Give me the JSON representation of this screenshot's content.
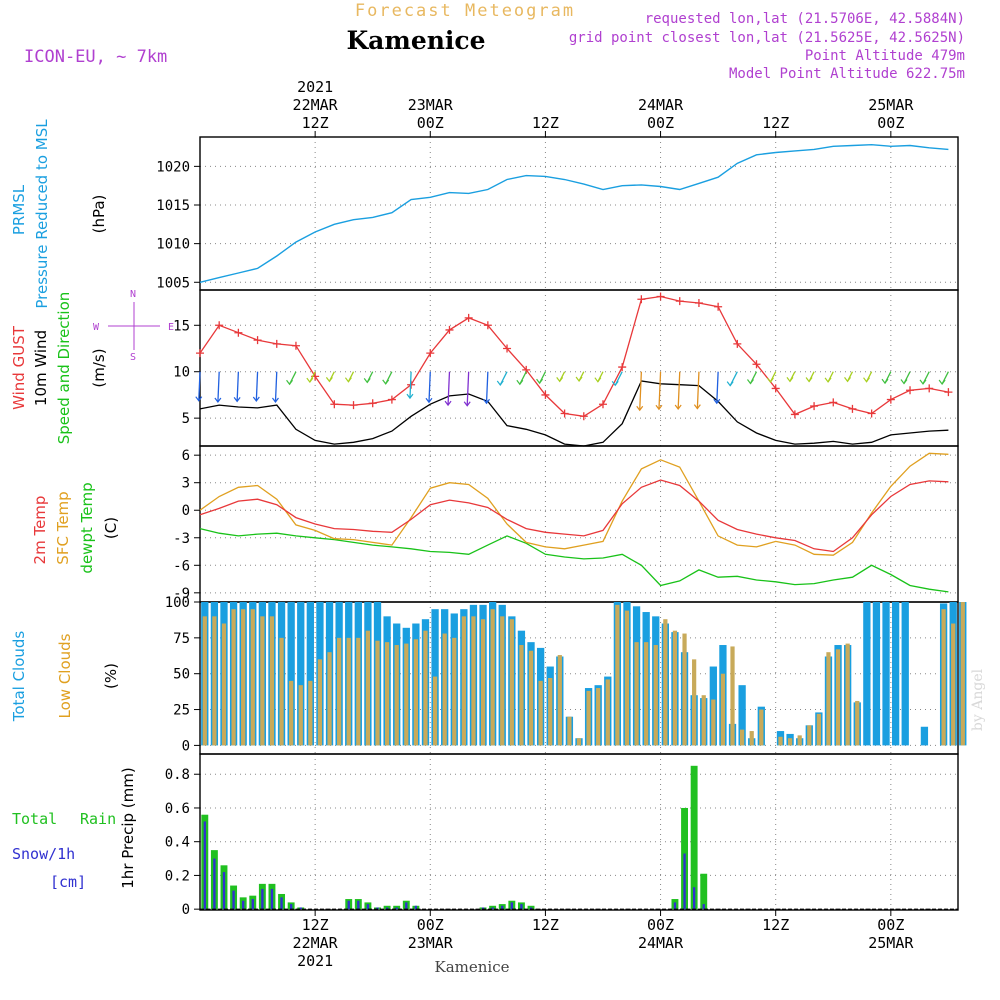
{
  "header": {
    "supertitle": "Forecast Meteogram",
    "location": "Kamenice",
    "model": "ICON-EU, ~ 7km",
    "requested": "requested lon,lat (21.5706E, 42.5884N)",
    "gridpoint": "grid point closest lon,lat (21.5625E, 42.5625N)",
    "point_altitude": "Point Altitude 479m",
    "model_altitude": "Model Point Altitude 622.75m",
    "footer": "Kamenice",
    "watermark": "by Angel"
  },
  "time_axis": {
    "top": [
      {
        "hour": 12,
        "lines": [
          "2021",
          "22MAR",
          "12Z"
        ]
      },
      {
        "hour": 24,
        "lines": [
          "23MAR",
          "00Z"
        ]
      },
      {
        "hour": 36,
        "lines": [
          "12Z"
        ]
      },
      {
        "hour": 48,
        "lines": [
          "24MAR",
          "00Z"
        ]
      },
      {
        "hour": 60,
        "lines": [
          "12Z"
        ]
      },
      {
        "hour": 72,
        "lines": [
          "25MAR",
          "00Z"
        ]
      }
    ],
    "bottom": [
      {
        "hour": 12,
        "lines": [
          "12Z",
          "22MAR",
          "2021"
        ]
      },
      {
        "hour": 24,
        "lines": [
          "00Z",
          "23MAR"
        ]
      },
      {
        "hour": 36,
        "lines": [
          "12Z"
        ]
      },
      {
        "hour": 48,
        "lines": [
          "00Z",
          "24MAR"
        ]
      },
      {
        "hour": 60,
        "lines": [
          "12Z"
        ]
      },
      {
        "hour": 72,
        "lines": [
          "00Z",
          "25MAR"
        ]
      }
    ]
  },
  "labels": {
    "p1": {
      "a": "PRMSL",
      "b": "Pressure Reduced to MSL",
      "unit": "(hPa)"
    },
    "p2": {
      "a": "Wind GUST",
      "b": "10m Wind",
      "c": "Speed and Direction",
      "unit": "(m/s)",
      "compass_w": "W",
      "compass_e": "E",
      "compass_n": "N",
      "compass_s": "S"
    },
    "p3": {
      "a": "2m Temp",
      "b": "SFC Temp",
      "c": "dewpt Temp",
      "unit": "(C)"
    },
    "p4": {
      "a": "Total Clouds",
      "b": "Low Clouds",
      "unit": "(%)"
    },
    "p5": {
      "a": "Total",
      "a2": "Rain",
      "b": "Snow/1h",
      "b2": "[cm]",
      "unit": "1hr Precip (mm)"
    }
  },
  "colors": {
    "pressure": "#1a9fe0",
    "gust": "#e8383a",
    "wind": "#000000",
    "t2m": "#e8383a",
    "tsfc": "#e0a020",
    "dewpt": "#19c219",
    "total_clouds": "#1a9fe0",
    "low_clouds": "#c8aa5a",
    "rain": "#20c020",
    "snow": "#3030d0",
    "title": "#e8b860",
    "info": "#b040d0"
  },
  "chart_data": [
    {
      "type": "line",
      "title": "PRMSL Pressure Reduced to MSL",
      "ylabel": "(hPa)",
      "ylim": [
        1004,
        1023.8
      ],
      "yticks": [
        1005,
        1010,
        1015,
        1020
      ],
      "x": [
        0,
        2,
        4,
        6,
        8,
        10,
        12,
        14,
        16,
        18,
        20,
        22,
        24,
        26,
        28,
        30,
        32,
        34,
        36,
        38,
        40,
        42,
        44,
        46,
        48,
        50,
        52,
        54,
        56,
        58,
        60,
        62,
        64,
        66,
        68,
        70,
        72,
        74,
        76,
        78
      ],
      "series": [
        {
          "name": "PRMSL",
          "values": [
            1005,
            1005.6,
            1006.2,
            1006.8,
            1008.4,
            1010.2,
            1011.5,
            1012.5,
            1013.1,
            1013.4,
            1014,
            1015.7,
            1016,
            1016.6,
            1016.5,
            1017,
            1018.3,
            1018.8,
            1018.7,
            1018.3,
            1017.7,
            1017,
            1017.5,
            1017.6,
            1017.4,
            1017,
            1017.8,
            1018.6,
            1020.4,
            1021.5,
            1021.8,
            1022,
            1022.2,
            1022.6,
            1022.7,
            1022.8,
            1022.6,
            1022.7,
            1022.4,
            1022.2
          ]
        }
      ]
    },
    {
      "type": "line",
      "title": "Wind GUST, 10m Wind Speed and Direction",
      "ylabel": "(m/s)",
      "ylim": [
        2,
        18.8
      ],
      "yticks": [
        5,
        10,
        15
      ],
      "x": [
        0,
        2,
        4,
        6,
        8,
        10,
        12,
        14,
        16,
        18,
        20,
        22,
        24,
        26,
        28,
        30,
        32,
        34,
        36,
        38,
        40,
        42,
        44,
        46,
        48,
        50,
        52,
        54,
        56,
        58,
        60,
        62,
        64,
        66,
        68,
        70,
        72,
        74,
        76,
        78
      ],
      "series": [
        {
          "name": "Wind GUST",
          "values": [
            12,
            15,
            14.2,
            13.4,
            13,
            12.8,
            9.5,
            6.5,
            6.4,
            6.6,
            7,
            8.6,
            12,
            14.5,
            15.8,
            15,
            12.5,
            10.2,
            7.5,
            5.5,
            5.2,
            6.5,
            10.5,
            17.8,
            18.1,
            17.6,
            17.4,
            17,
            13,
            10.8,
            8.2,
            5.4,
            6.3,
            6.7,
            6,
            5.5,
            7,
            8,
            8.2,
            7.8
          ]
        },
        {
          "name": "10m Wind",
          "values": [
            6,
            6.4,
            6.2,
            6.1,
            6.4,
            3.8,
            2.6,
            2.2,
            2.4,
            2.8,
            3.6,
            5.2,
            6.5,
            7.4,
            7.6,
            6.8,
            4.2,
            3.8,
            3.2,
            2.2,
            2,
            2.4,
            4.4,
            9,
            8.7,
            8.6,
            8.5,
            6.8,
            4.6,
            3.4,
            2.6,
            2.2,
            2.3,
            2.5,
            2.2,
            2.4,
            3.2,
            3.4,
            3.6,
            3.7
          ]
        }
      ]
    },
    {
      "type": "line",
      "title": "2m Temp, SFC Temp, dewpt Temp",
      "ylabel": "(C)",
      "ylim": [
        -10,
        7
      ],
      "yticks": [
        -9,
        -6,
        -3,
        0,
        3,
        6
      ],
      "x": [
        0,
        2,
        4,
        6,
        8,
        10,
        12,
        14,
        16,
        18,
        20,
        22,
        24,
        26,
        28,
        30,
        32,
        34,
        36,
        38,
        40,
        42,
        44,
        46,
        48,
        50,
        52,
        54,
        56,
        58,
        60,
        62,
        64,
        66,
        68,
        70,
        72,
        74,
        76,
        78
      ],
      "series": [
        {
          "name": "2m Temp",
          "values": [
            -0.5,
            0.2,
            1,
            1.2,
            0.6,
            -0.8,
            -1.5,
            -2,
            -2.1,
            -2.3,
            -2.4,
            -1,
            0.6,
            1.1,
            0.8,
            0.3,
            -1,
            -2,
            -2.4,
            -2.6,
            -2.8,
            -2.2,
            0.7,
            2.5,
            3.3,
            2.7,
            1,
            -1.1,
            -2.1,
            -2.6,
            -3,
            -3.3,
            -4.2,
            -4.5,
            -3,
            -0.5,
            1.5,
            2.8,
            3.2,
            3.1
          ]
        },
        {
          "name": "SFC Temp",
          "values": [
            0,
            1.5,
            2.5,
            2.7,
            1.2,
            -1.6,
            -2.2,
            -3.1,
            -3.2,
            -3.5,
            -3.8,
            -0.8,
            2.4,
            3,
            2.8,
            1.3,
            -1.5,
            -3.5,
            -4,
            -4.2,
            -3.8,
            -3.4,
            1,
            4.5,
            5.5,
            4.7,
            1,
            -2.8,
            -3.8,
            -4,
            -3.4,
            -3.8,
            -4.8,
            -4.9,
            -3.5,
            -0.3,
            2.6,
            4.8,
            6.2,
            6.1
          ]
        },
        {
          "name": "dewpt Temp",
          "values": [
            -2,
            -2.5,
            -2.8,
            -2.6,
            -2.5,
            -2.8,
            -3,
            -3.2,
            -3.5,
            -3.8,
            -4,
            -4.2,
            -4.5,
            -4.6,
            -4.8,
            -3.8,
            -2.8,
            -3.6,
            -4.8,
            -5.1,
            -5.3,
            -5.2,
            -4.8,
            -6,
            -8.2,
            -7.7,
            -6.5,
            -7.3,
            -7.2,
            -7.6,
            -7.8,
            -8.1,
            -8,
            -7.6,
            -7.3,
            -6,
            -7,
            -8.2,
            -8.6,
            -8.9
          ]
        }
      ]
    },
    {
      "type": "bar",
      "title": "Total Clouds, Low Clouds",
      "ylabel": "(%)",
      "ylim": [
        -6,
        100
      ],
      "yticks": [
        0,
        25,
        50,
        75,
        100
      ],
      "x": [
        1,
        2,
        3,
        4,
        5,
        6,
        7,
        8,
        9,
        10,
        11,
        12,
        13,
        14,
        15,
        16,
        17,
        18,
        19,
        20,
        21,
        22,
        23,
        24,
        25,
        26,
        27,
        28,
        29,
        30,
        31,
        32,
        33,
        34,
        35,
        36,
        37,
        38,
        39,
        40,
        41,
        42,
        43,
        44,
        45,
        46,
        47,
        48,
        49,
        50,
        51,
        52,
        53,
        54,
        55,
        56,
        57,
        58,
        59,
        60,
        61,
        62,
        63,
        64,
        65,
        66,
        67,
        68,
        69,
        70,
        71,
        72,
        73,
        74,
        75,
        76,
        77,
        78,
        79,
        80
      ],
      "series": [
        {
          "name": "Total Clouds",
          "values": [
            100,
            100,
            100,
            100,
            100,
            100,
            100,
            100,
            100,
            100,
            100,
            100,
            100,
            100,
            100,
            100,
            100,
            100,
            100,
            90,
            85,
            82,
            85,
            88,
            95,
            95,
            92,
            95,
            98,
            98,
            100,
            98,
            90,
            80,
            72,
            68,
            55,
            62,
            20,
            5,
            40,
            42,
            48,
            100,
            100,
            97,
            93,
            90,
            85,
            79,
            65,
            35,
            33,
            55,
            70,
            15,
            42,
            5,
            27,
            0,
            10,
            8,
            5,
            14,
            23,
            62,
            70,
            70,
            30,
            100,
            100,
            100,
            100,
            100,
            0,
            13,
            0,
            99,
            100,
            100
          ]
        },
        {
          "name": "Low Clouds",
          "values": [
            90,
            90,
            85,
            95,
            95,
            95,
            90,
            90,
            75,
            45,
            42,
            45,
            60,
            65,
            75,
            75,
            75,
            80,
            73,
            72,
            70,
            71,
            74,
            80,
            48,
            78,
            75,
            90,
            90,
            88,
            95,
            90,
            88,
            70,
            66,
            45,
            47,
            63,
            20,
            5,
            38,
            40,
            46,
            98,
            94,
            72,
            72,
            70,
            88,
            80,
            78,
            60,
            35,
            32,
            50,
            69,
            11,
            10,
            25,
            0,
            6,
            5,
            7,
            14,
            22,
            65,
            67,
            71,
            31,
            0,
            0,
            0,
            0,
            0,
            0,
            0,
            0,
            95,
            85,
            100
          ]
        }
      ]
    },
    {
      "type": "bar",
      "title": "Total Rain, Snow/1h",
      "ylabel": "1hr Precip (mm)",
      "ylim": [
        -0.005,
        0.92
      ],
      "yticks": [
        0,
        0.2,
        0.4,
        0.6,
        0.8
      ],
      "x": [
        1,
        2,
        3,
        4,
        5,
        6,
        7,
        8,
        9,
        10,
        11,
        12,
        13,
        14,
        15,
        16,
        17,
        18,
        19,
        20,
        21,
        22,
        23,
        24,
        25,
        26,
        27,
        28,
        29,
        30,
        31,
        32,
        33,
        34,
        35,
        36,
        37,
        38,
        39,
        40,
        41,
        42,
        43,
        44,
        45,
        46,
        47,
        48,
        49,
        50,
        51,
        52,
        53,
        54,
        55,
        56,
        57,
        58,
        59,
        60,
        61,
        62,
        63,
        64,
        65,
        66,
        67,
        68,
        69,
        70,
        71,
        72,
        73,
        74,
        75,
        76,
        77,
        78,
        79,
        80
      ],
      "series": [
        {
          "name": "Total Rain",
          "values": [
            0.56,
            0.35,
            0.26,
            0.14,
            0.07,
            0.08,
            0.15,
            0.15,
            0.09,
            0.04,
            0.01,
            0,
            0,
            0,
            0,
            0.06,
            0.06,
            0.04,
            0.01,
            0.02,
            0.02,
            0.05,
            0.02,
            0,
            0,
            0,
            0,
            0,
            0,
            0.01,
            0.02,
            0.03,
            0.05,
            0.04,
            0.02,
            0,
            0,
            0,
            0,
            0,
            0,
            0,
            0,
            0,
            0,
            0,
            0,
            0,
            0,
            0.06,
            0.6,
            0.85,
            0.21,
            0,
            0,
            0,
            0,
            0,
            0,
            0,
            0,
            0,
            0,
            0,
            0,
            0,
            0,
            0,
            0,
            0,
            0,
            0,
            0,
            0,
            0,
            0,
            0,
            0,
            0,
            0
          ]
        },
        {
          "name": "Snow/1h",
          "values": [
            0.52,
            0.3,
            0.22,
            0.11,
            0.05,
            0.06,
            0.12,
            0.12,
            0.07,
            0.03,
            0.01,
            0,
            0,
            0,
            0,
            0.05,
            0.05,
            0.03,
            0.01,
            0.01,
            0.01,
            0.04,
            0.02,
            0,
            0,
            0,
            0,
            0,
            0,
            0.01,
            0.01,
            0.02,
            0.04,
            0.03,
            0.01,
            0,
            0,
            0,
            0,
            0,
            0,
            0,
            0,
            0,
            0,
            0,
            0,
            0,
            0,
            0.04,
            0.33,
            0.13,
            0.03,
            0,
            0,
            0,
            0,
            0,
            0,
            0,
            0,
            0,
            0,
            0,
            0,
            0,
            0,
            0,
            0,
            0,
            0,
            0,
            0,
            0,
            0,
            0,
            0,
            0,
            0,
            0
          ]
        }
      ]
    }
  ]
}
